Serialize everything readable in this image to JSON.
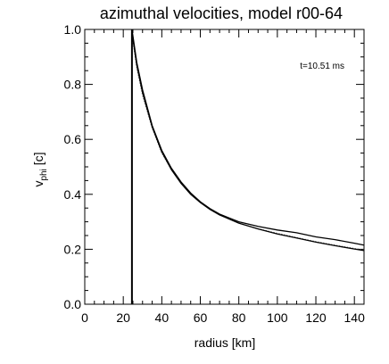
{
  "chart_data": {
    "type": "line",
    "title": "azimuthal velocities, model r00-64",
    "xlabel": "radius [km]",
    "ylabel": {
      "main": "v",
      "sub": "phi",
      "unit": " [c]"
    },
    "xlim": [
      0,
      145
    ],
    "ylim": [
      0,
      1.0
    ],
    "x_ticks": [
      "0",
      "20",
      "40",
      "60",
      "80",
      "100",
      "120",
      "140"
    ],
    "y_ticks": [
      "0.0",
      "0.2",
      "0.4",
      "0.6",
      "0.8",
      "1.0"
    ],
    "x_tick_values": [
      0,
      20,
      40,
      60,
      80,
      100,
      120,
      140
    ],
    "y_tick_values": [
      0,
      0.2,
      0.4,
      0.6,
      0.8,
      1.0
    ],
    "annotation": "t=10.51 ms",
    "vertical_line_x": 24.5,
    "grid": false,
    "series": [
      {
        "style": "solid",
        "x": [
          24.5,
          27,
          30,
          35,
          40,
          45,
          50,
          55,
          60,
          65,
          70,
          80,
          90,
          100,
          110,
          120,
          130,
          140,
          145
        ],
        "y": [
          1.0,
          0.88,
          0.78,
          0.65,
          0.56,
          0.495,
          0.445,
          0.405,
          0.373,
          0.348,
          0.328,
          0.3,
          0.283,
          0.27,
          0.26,
          0.245,
          0.235,
          0.222,
          0.215
        ]
      },
      {
        "style": "dotted",
        "x": [
          24.5,
          27,
          30,
          35,
          40,
          45,
          50,
          55,
          60,
          65,
          70,
          80,
          90,
          100,
          110,
          120,
          130,
          140,
          145
        ],
        "y": [
          0.98,
          0.86,
          0.76,
          0.64,
          0.55,
          0.49,
          0.44,
          0.4,
          0.37,
          0.345,
          0.325,
          0.295,
          0.275,
          0.258,
          0.243,
          0.228,
          0.215,
          0.203,
          0.197
        ]
      },
      {
        "style": "solid",
        "x": [
          24.5,
          27,
          30,
          35,
          40,
          45,
          50,
          55,
          60,
          65,
          70,
          80,
          90,
          100,
          110,
          120,
          130,
          140,
          145
        ],
        "y": [
          0.99,
          0.87,
          0.77,
          0.645,
          0.555,
          0.49,
          0.44,
          0.4,
          0.37,
          0.345,
          0.325,
          0.295,
          0.274,
          0.256,
          0.241,
          0.226,
          0.213,
          0.201,
          0.195
        ]
      }
    ]
  }
}
